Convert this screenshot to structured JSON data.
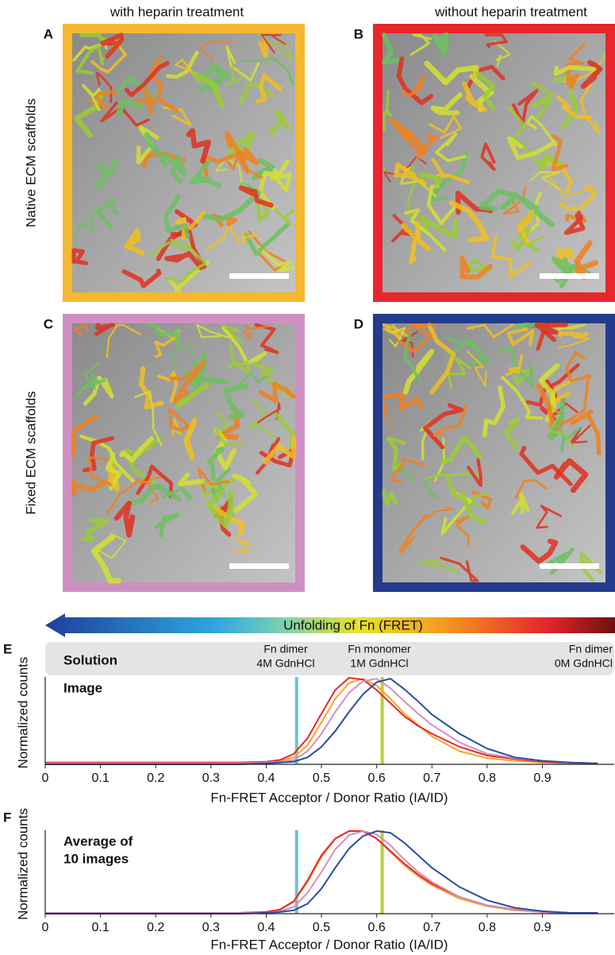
{
  "figure": {
    "column_headers": [
      "with heparin treatment",
      "without heparin treatment"
    ],
    "row_labels": [
      "Native ECM scaffolds",
      "Fixed ECM scaffolds"
    ],
    "panels": [
      {
        "letter": "A",
        "border_color": "#f5b82e"
      },
      {
        "letter": "B",
        "border_color": "#e8262c"
      },
      {
        "letter": "C",
        "border_color": "#d08fc3"
      },
      {
        "letter": "D",
        "border_color": "#243b8c"
      }
    ],
    "colorbar": {
      "label": "Unfolding of Fn (FRET)"
    }
  },
  "chart_data": [
    {
      "type": "line",
      "panel_letter": "E",
      "box_label": "Solution",
      "inset_label": [
        "Image"
      ],
      "annotations": [
        {
          "lines": [
            "Fn dimer",
            "4M GdnHCl"
          ]
        },
        {
          "lines": [
            "Fn monomer",
            "1M GdnHCl"
          ]
        },
        {
          "lines": [
            "Fn dimer",
            "0M GdnHCl"
          ]
        }
      ],
      "xlabel": "Fn-FRET Acceptor / Donor Ratio (IA/ID)",
      "ylabel": "Normalized counts",
      "xlim": [
        0,
        1.03
      ],
      "ylim": [
        0,
        1
      ],
      "xticks": [
        0,
        0.1,
        0.2,
        0.3,
        0.4,
        0.5,
        0.6,
        0.7,
        0.8,
        0.9
      ],
      "reference_lines": [
        {
          "x": 0.455,
          "color": "#6cc5cb"
        },
        {
          "x": 0.61,
          "color": "#b5d334"
        }
      ],
      "x": [
        0,
        0.1,
        0.2,
        0.3,
        0.35,
        0.4,
        0.425,
        0.45,
        0.475,
        0.5,
        0.525,
        0.55,
        0.575,
        0.6,
        0.625,
        0.65,
        0.675,
        0.7,
        0.75,
        0.8,
        0.85,
        0.9,
        0.95,
        1.0
      ],
      "series": [
        {
          "color": "#f5a623",
          "values": [
            0.02,
            0.02,
            0.02,
            0.02,
            0.02,
            0.03,
            0.04,
            0.08,
            0.22,
            0.48,
            0.75,
            0.93,
            0.98,
            0.9,
            0.75,
            0.58,
            0.45,
            0.32,
            0.15,
            0.07,
            0.04,
            0.02,
            0.01,
            0.01
          ]
        },
        {
          "color": "#e8262c",
          "values": [
            0.02,
            0.02,
            0.02,
            0.02,
            0.02,
            0.03,
            0.05,
            0.12,
            0.3,
            0.58,
            0.85,
            0.99,
            0.97,
            0.85,
            0.7,
            0.55,
            0.44,
            0.35,
            0.2,
            0.1,
            0.06,
            0.03,
            0.02,
            0.01
          ]
        },
        {
          "color": "#d08fc3",
          "values": [
            0.01,
            0.01,
            0.01,
            0.01,
            0.01,
            0.02,
            0.03,
            0.05,
            0.15,
            0.35,
            0.6,
            0.82,
            0.95,
            0.98,
            0.87,
            0.72,
            0.58,
            0.45,
            0.25,
            0.12,
            0.07,
            0.04,
            0.02,
            0.01
          ]
        },
        {
          "color": "#2a4d9b",
          "values": [
            0,
            0,
            0,
            0,
            0,
            0.01,
            0.02,
            0.03,
            0.08,
            0.2,
            0.38,
            0.6,
            0.8,
            0.94,
            0.98,
            0.86,
            0.72,
            0.57,
            0.35,
            0.18,
            0.08,
            0.04,
            0.02,
            0.01
          ]
        }
      ]
    },
    {
      "type": "line",
      "panel_letter": "F",
      "inset_label": [
        "Average of",
        "10 images"
      ],
      "xlabel": "Fn-FRET Acceptor / Donor Ratio (IA/ID)",
      "ylabel": "Normalized counts",
      "xlim": [
        0,
        1.03
      ],
      "ylim": [
        0,
        1
      ],
      "xticks": [
        0,
        0.1,
        0.2,
        0.3,
        0.4,
        0.5,
        0.6,
        0.7,
        0.8,
        0.9
      ],
      "reference_lines": [
        {
          "x": 0.455,
          "color": "#6cc5cb"
        },
        {
          "x": 0.61,
          "color": "#b5d334"
        }
      ],
      "x": [
        0,
        0.1,
        0.2,
        0.3,
        0.35,
        0.4,
        0.425,
        0.45,
        0.475,
        0.5,
        0.525,
        0.55,
        0.575,
        0.6,
        0.625,
        0.65,
        0.675,
        0.7,
        0.75,
        0.8,
        0.85,
        0.9,
        0.95,
        1.0
      ],
      "series": [
        {
          "color": "#f5a623",
          "values": [
            0.01,
            0.01,
            0.01,
            0.01,
            0.01,
            0.02,
            0.05,
            0.14,
            0.38,
            0.68,
            0.9,
            0.99,
            0.99,
            0.9,
            0.74,
            0.58,
            0.45,
            0.34,
            0.18,
            0.09,
            0.04,
            0.02,
            0.01,
            0.01
          ]
        },
        {
          "color": "#e8262c",
          "values": [
            0.01,
            0.01,
            0.01,
            0.01,
            0.01,
            0.02,
            0.05,
            0.15,
            0.4,
            0.7,
            0.9,
            0.99,
            0.99,
            0.9,
            0.75,
            0.6,
            0.47,
            0.36,
            0.2,
            0.1,
            0.05,
            0.02,
            0.01,
            0.01
          ]
        },
        {
          "color": "#d08fc3",
          "values": [
            0.01,
            0.01,
            0.01,
            0.01,
            0.01,
            0.01,
            0.03,
            0.08,
            0.25,
            0.5,
            0.77,
            0.94,
            0.99,
            0.95,
            0.82,
            0.65,
            0.5,
            0.38,
            0.2,
            0.1,
            0.05,
            0.02,
            0.01,
            0.01
          ]
        },
        {
          "color": "#2a4d9b",
          "values": [
            0,
            0,
            0,
            0,
            0,
            0.01,
            0.02,
            0.04,
            0.12,
            0.3,
            0.55,
            0.78,
            0.93,
            0.99,
            0.97,
            0.85,
            0.7,
            0.55,
            0.32,
            0.16,
            0.07,
            0.03,
            0.01,
            0.01
          ]
        }
      ]
    }
  ]
}
